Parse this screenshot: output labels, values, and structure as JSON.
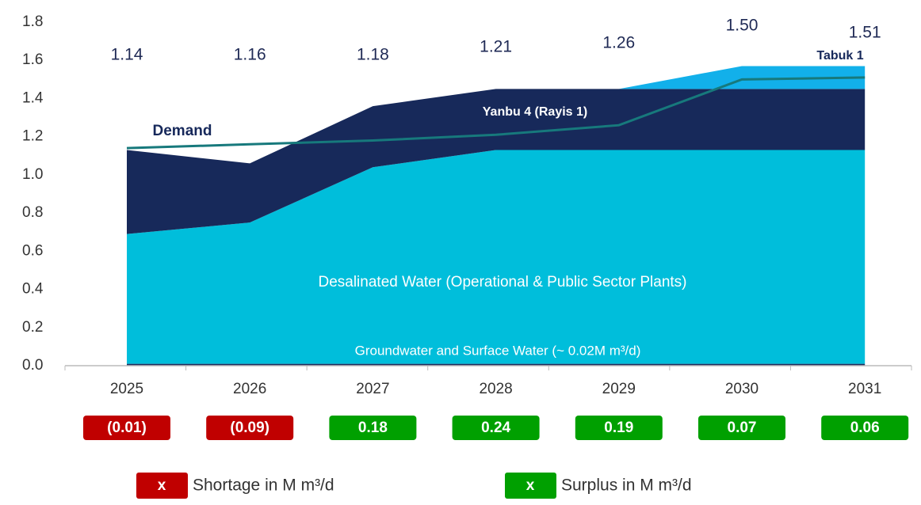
{
  "chart_data": {
    "type": "stacked_area",
    "categories": [
      "2025",
      "2026",
      "2027",
      "2028",
      "2029",
      "2030",
      "2031"
    ],
    "ylim": [
      0,
      1.8
    ],
    "yticks": [
      {
        "value": 0,
        "label": "0.0"
      },
      0.2,
      0.4,
      0.6,
      0.8,
      {
        "value": 1,
        "label": "1.0"
      },
      1.2,
      1.4,
      1.6,
      1.8
    ],
    "series": [
      {
        "name": "Groundwater and Surface Water (~ 0.02M m³/d)",
        "color": "#1b2a5c",
        "values": [
          0.01,
          0.01,
          0.01,
          0.01,
          0.01,
          0.01,
          0.01
        ]
      },
      {
        "name": "Desalinated Water (Operational & Public Sector Plants)",
        "color": "#00bedb",
        "values": [
          0.68,
          0.74,
          1.03,
          1.12,
          1.12,
          1.12,
          1.12
        ]
      },
      {
        "name": "Yanbu 4 (Rayis 1)",
        "color": "#17295a",
        "values": [
          0.44,
          0.31,
          0.32,
          0.32,
          0.32,
          0.32,
          0.32
        ]
      },
      {
        "name": "Tabuk 1",
        "color": "#12b0ea",
        "values": [
          0,
          0,
          0,
          0,
          0,
          0.12,
          0.12
        ]
      }
    ],
    "demand": {
      "name": "Demand",
      "color": "#17797c",
      "values": [
        1.14,
        1.16,
        1.18,
        1.21,
        1.26,
        1.5,
        1.51
      ],
      "value_labels": [
        "1.14",
        "1.16",
        "1.18",
        "1.21",
        "1.26",
        "1.50",
        "1.51"
      ]
    },
    "balance": {
      "values": [
        -0.01,
        -0.09,
        0.18,
        0.24,
        0.19,
        0.07,
        0.06
      ],
      "value_labels": [
        "(0.01)",
        "(0.09)",
        "0.18",
        "0.24",
        "0.19",
        "0.07",
        "0.06"
      ],
      "shortage_color": "#c00000",
      "surplus_color": "#00a000",
      "legend_marker": "x",
      "shortage_label": "Shortage in M m³/d",
      "surplus_label": "Surplus in M m³/d"
    }
  }
}
